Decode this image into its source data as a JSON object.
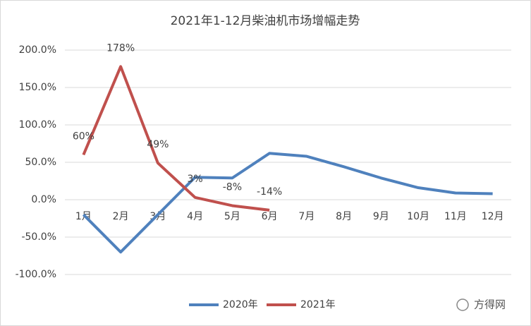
{
  "chart_data": {
    "type": "line",
    "title": "2021年1-12月柴油机市场增幅走势",
    "categories": [
      "1月",
      "2月",
      "3月",
      "4月",
      "5月",
      "6月",
      "7月",
      "8月",
      "9月",
      "10月",
      "11月",
      "12月"
    ],
    "series": [
      {
        "name": "2020年",
        "color": "#4f81bd",
        "values": [
          -20,
          -70,
          -20,
          30,
          29,
          62,
          58,
          44,
          29,
          16,
          9,
          8
        ]
      },
      {
        "name": "2021年",
        "color": "#c0504d",
        "values": [
          60,
          178,
          49,
          3,
          -8,
          -14,
          null,
          null,
          null,
          null,
          null,
          null
        ],
        "value_labels": [
          "60%",
          "178%",
          "49%",
          "3%",
          "-8%",
          "-14%",
          null,
          null,
          null,
          null,
          null,
          null
        ]
      }
    ],
    "ylim": [
      -100,
      200
    ],
    "yticks": [
      {
        "value": -100,
        "label": "-100.0%"
      },
      {
        "value": -50,
        "label": "-50.0%"
      },
      {
        "value": 0,
        "label": "0.0%"
      },
      {
        "value": 50,
        "label": "50.0%"
      },
      {
        "value": 100,
        "label": "100.0%"
      },
      {
        "value": 150,
        "label": "150.0%"
      },
      {
        "value": 200,
        "label": "200.0%"
      }
    ],
    "grid": true,
    "legend": "bottom",
    "watermark": "方得网"
  }
}
